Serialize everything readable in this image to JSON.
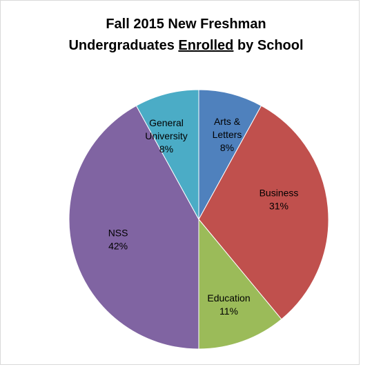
{
  "chart_data": {
    "type": "pie",
    "title": {
      "line1": "Fall 2015 New Freshman",
      "line2_prefix": "Undergraduates ",
      "line2_emphasis": "Enrolled",
      "line2_suffix": " by School"
    },
    "slices": [
      {
        "label_lines": [
          "Arts &",
          "Letters"
        ],
        "percent_label": "8%",
        "value": 8,
        "color": "#4f81bd"
      },
      {
        "label_lines": [
          "Business"
        ],
        "percent_label": "31%",
        "value": 31,
        "color": "#c0504d"
      },
      {
        "label_lines": [
          "Education"
        ],
        "percent_label": "11%",
        "value": 11,
        "color": "#9bbb59"
      },
      {
        "label_lines": [
          "NSS"
        ],
        "percent_label": "42%",
        "value": 42,
        "color": "#8064a2"
      },
      {
        "label_lines": [
          "General",
          "University"
        ],
        "percent_label": "8%",
        "value": 8,
        "color": "#4bacc6"
      }
    ],
    "start": "12 o'clock",
    "direction": "clockwise",
    "legend": "none"
  }
}
